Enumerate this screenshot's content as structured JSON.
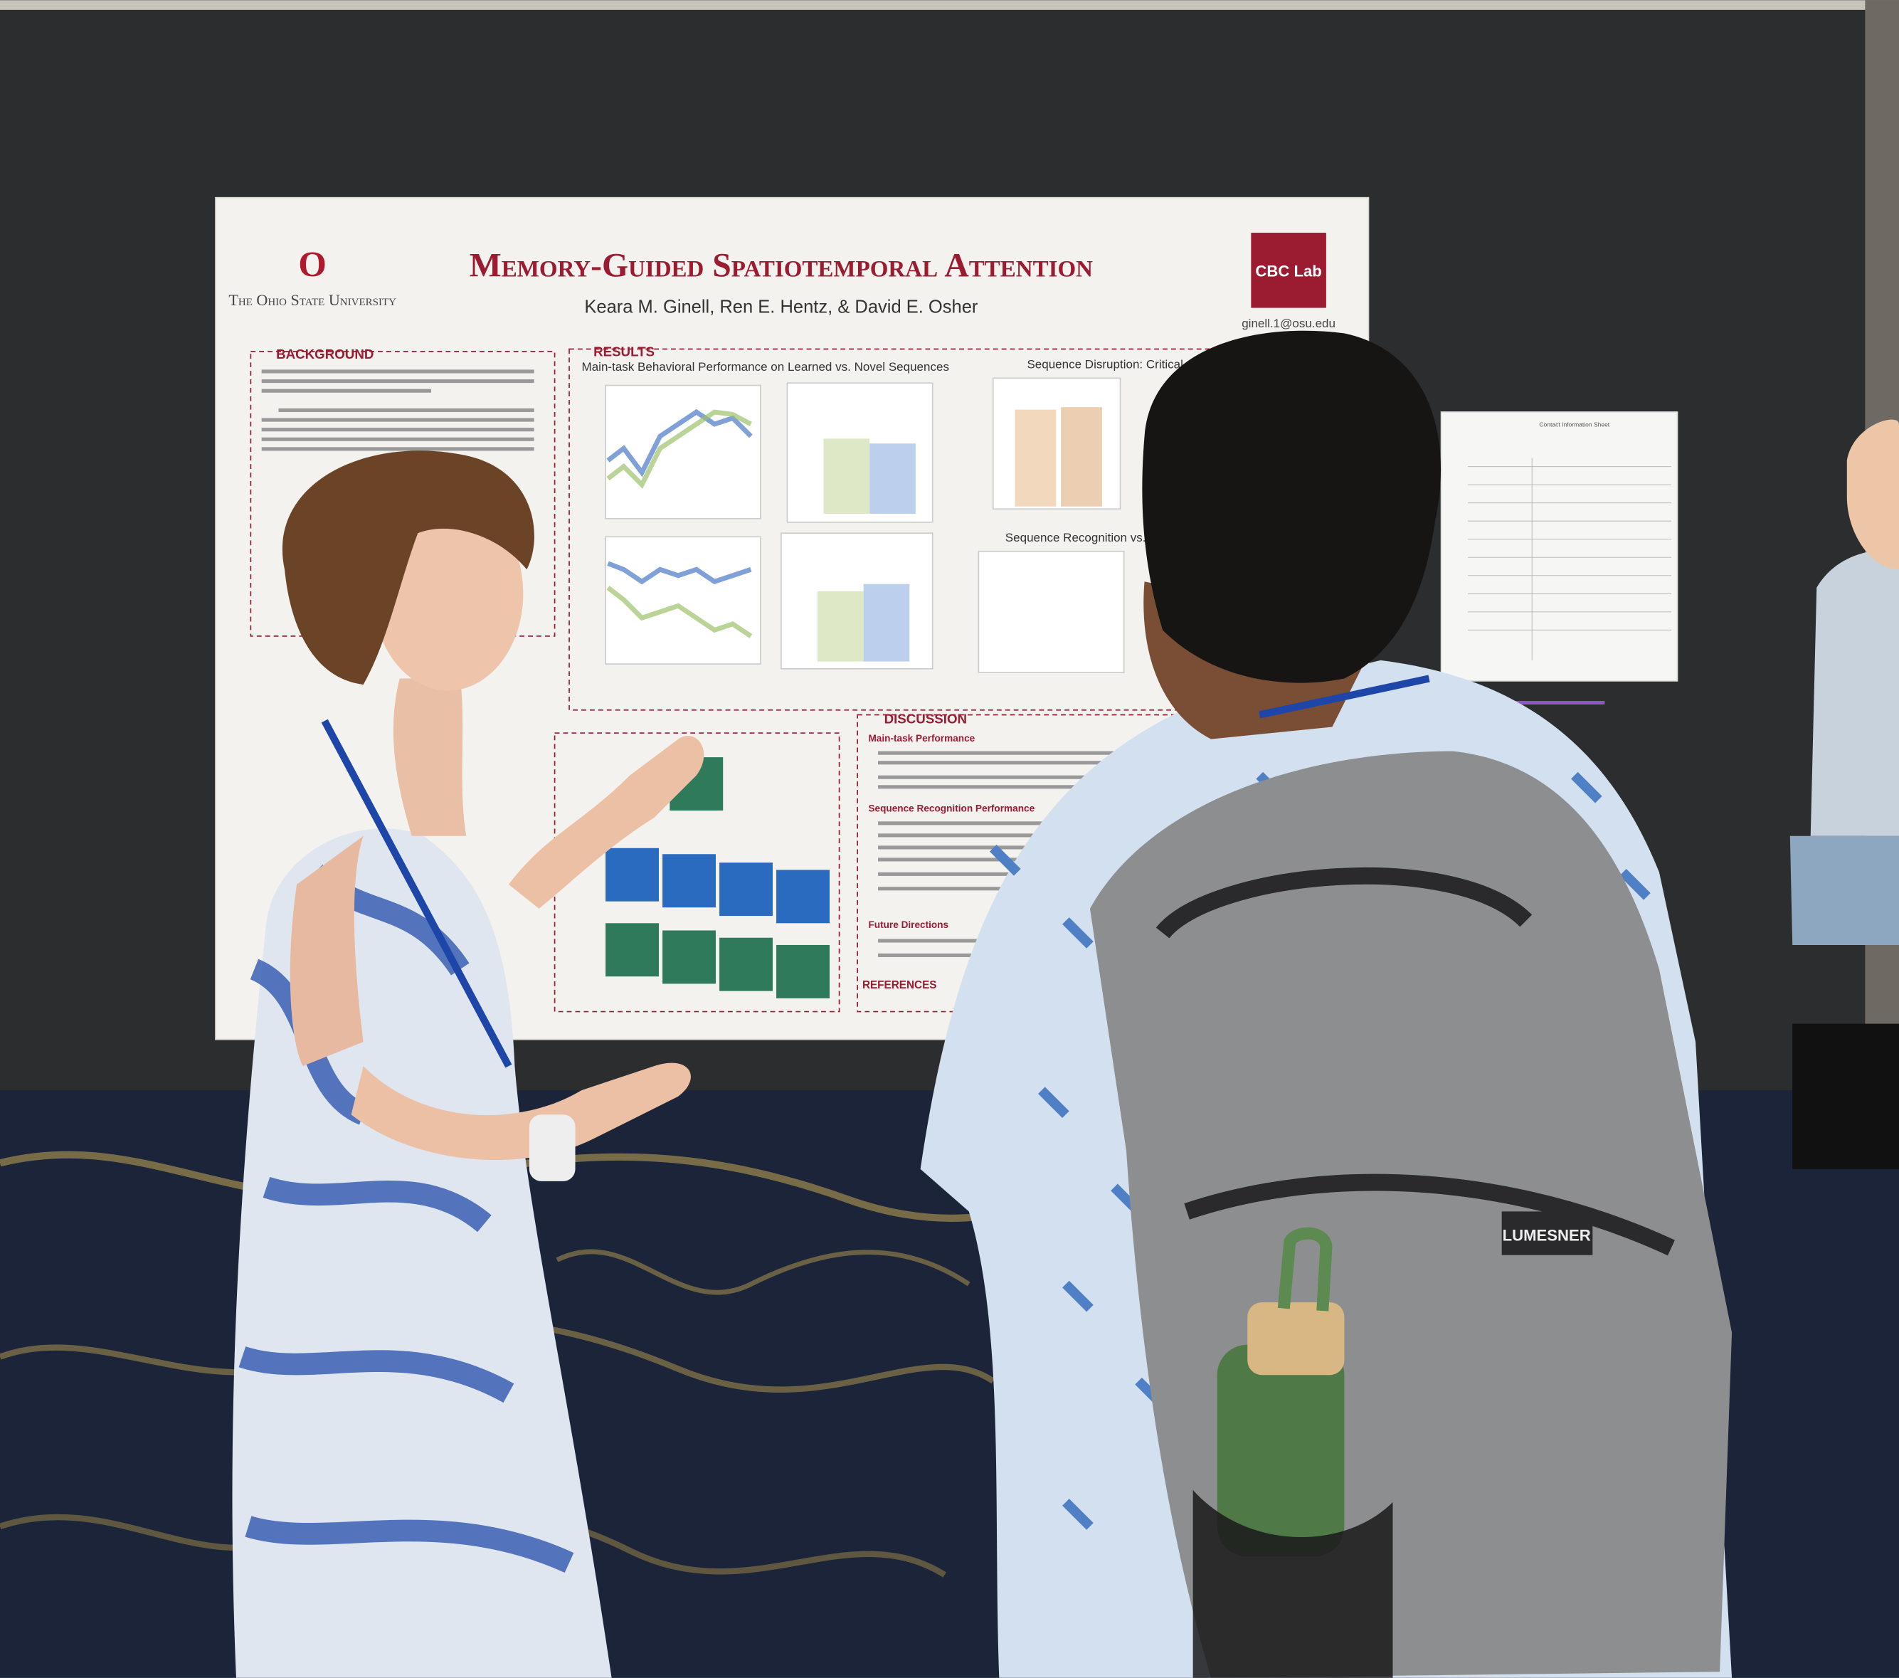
{
  "poster": {
    "title": "Memory-Guided Spatiotemporal Attention",
    "authors": "Keara M. Ginell, Ren E. Hentz, & David E. Osher",
    "university": "The Ohio State University",
    "lab": "CBC Lab",
    "email": "ginell.1@osu.edu",
    "sections": {
      "background": "BACKGROUND",
      "results": "RESULTS",
      "discussion": "DISCUSSION",
      "references": "REFERENCES"
    },
    "figures": [
      "Main-task Behavioral Performance on Learned vs. Novel Sequences",
      "Sequence Disruption: Critical vs",
      "Sequence Recognition vs. Ma"
    ],
    "discussion_headings": [
      "Main-task Performance",
      "Sequence Recognition Performance",
      "Future Directions"
    ]
  },
  "contact_sheet_title": "Contact Information Sheet",
  "backpack_brand": "LUMESNER"
}
